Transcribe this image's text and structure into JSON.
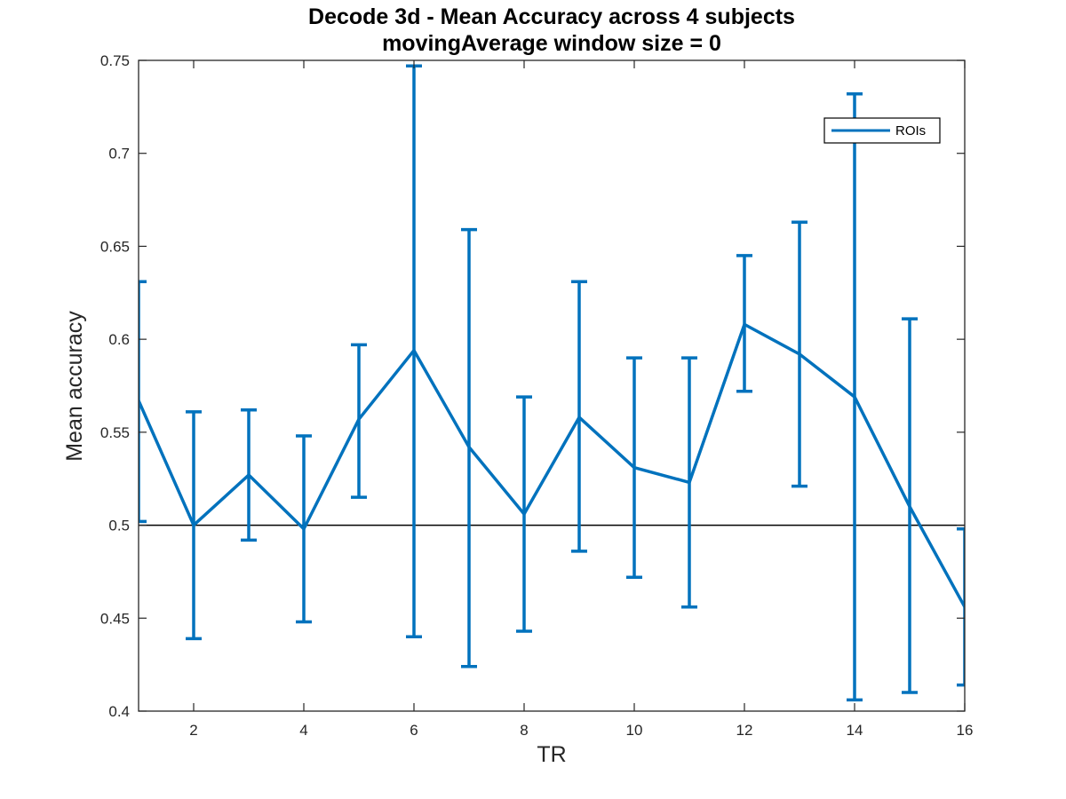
{
  "chart_data": {
    "type": "line",
    "title": "Decode 3d - Mean Accuracy across 4 subjects",
    "subtitle": "movingAverage window size = 0",
    "xlabel": "TR",
    "ylabel": "Mean accuracy",
    "xlim": [
      1,
      16
    ],
    "ylim": [
      0.4,
      0.75
    ],
    "xticks": [
      "2",
      "4",
      "6",
      "8",
      "10",
      "12",
      "14",
      "16"
    ],
    "yticks": [
      "0.4",
      "0.45",
      "0.5",
      "0.55",
      "0.6",
      "0.65",
      "0.7",
      "0.75"
    ],
    "grid": false,
    "legend": {
      "position": "top-right",
      "entries": [
        "ROIs"
      ]
    },
    "reference_line": {
      "y": 0.5,
      "color": "#000000"
    },
    "series": [
      {
        "name": "ROIs",
        "color": "#0072bd",
        "x": [
          1,
          2,
          3,
          4,
          5,
          6,
          7,
          8,
          9,
          10,
          11,
          12,
          13,
          14,
          15,
          16
        ],
        "y": [
          0.567,
          0.5,
          0.527,
          0.498,
          0.557,
          0.594,
          0.542,
          0.506,
          0.558,
          0.531,
          0.523,
          0.608,
          0.592,
          0.569,
          0.51,
          0.456
        ],
        "err_low": [
          0.502,
          0.439,
          0.492,
          0.448,
          0.515,
          0.44,
          0.424,
          0.443,
          0.486,
          0.472,
          0.456,
          0.572,
          0.521,
          0.406,
          0.41,
          0.414
        ],
        "err_high": [
          0.631,
          0.561,
          0.562,
          0.548,
          0.597,
          0.747,
          0.659,
          0.569,
          0.631,
          0.59,
          0.59,
          0.645,
          0.663,
          0.732,
          0.611,
          0.498
        ]
      }
    ]
  }
}
